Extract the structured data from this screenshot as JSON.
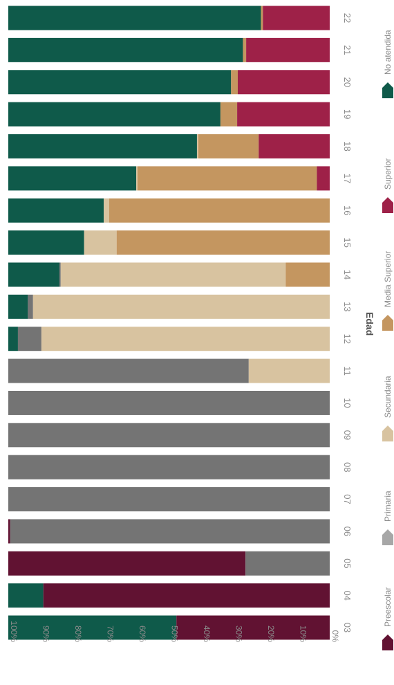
{
  "chart_data": {
    "type": "bar",
    "orientation": "horizontal-stacked-100",
    "title": "",
    "xlabel": "",
    "ylabel": "Edad",
    "xlim": [
      0,
      100
    ],
    "x_ticks": [
      "100%",
      "90%",
      "80%",
      "70%",
      "60%",
      "50%",
      "40%",
      "30%",
      "20%",
      "10%",
      "0%"
    ],
    "legend_position": "right",
    "categories": [
      "22",
      "21",
      "20",
      "19",
      "18",
      "17",
      "16",
      "15",
      "14",
      "13",
      "12",
      "11",
      "10",
      "09",
      "08",
      "07",
      "06",
      "05",
      "04",
      "03"
    ],
    "series": [
      {
        "name": "No atendida",
        "color": "#0f5a4a",
        "values": [
          78.6,
          73.0,
          69.3,
          66.0,
          58.7,
          39.8,
          29.7,
          23.6,
          15.9,
          6.1,
          3.0,
          0,
          0,
          0,
          0,
          0,
          0,
          0,
          10.9,
          52.3
        ]
      },
      {
        "name": "Preescolar",
        "color": "#611232",
        "values": [
          0,
          0,
          0,
          0,
          0,
          0,
          0,
          0,
          0,
          0,
          0,
          0,
          0,
          0,
          0,
          0,
          0.6,
          73.8,
          89.1,
          47.7
        ]
      },
      {
        "name": "Primaria",
        "color": "#747474",
        "values": [
          0,
          0,
          0,
          0,
          0,
          0,
          0,
          0,
          0.4,
          1.6,
          7.3,
          74.8,
          100,
          100,
          100,
          100,
          99.4,
          26.2,
          0,
          0
        ]
      },
      {
        "name": "Secundaria",
        "color": "#d8c3a0",
        "values": [
          0,
          0,
          0,
          0,
          0.4,
          0.4,
          1.7,
          10.1,
          70.0,
          92.3,
          89.7,
          25.2,
          0,
          0,
          0,
          0,
          0,
          0,
          0,
          0
        ]
      },
      {
        "name": "Media Superior",
        "color": "#c49660",
        "values": [
          0.6,
          1.0,
          2.1,
          5.2,
          18.8,
          55.8,
          68.6,
          66.3,
          13.7,
          0,
          0,
          0,
          0,
          0,
          0,
          0,
          0,
          0,
          0,
          0
        ]
      },
      {
        "name": "Superior",
        "color": "#9e2148",
        "values": [
          20.8,
          26.0,
          28.6,
          28.8,
          22.1,
          4.0,
          0,
          0,
          0,
          0,
          0,
          0,
          0,
          0,
          0,
          0,
          0,
          0,
          0,
          0
        ]
      }
    ]
  },
  "legend": [
    {
      "name": "Preescolar",
      "color": "#611232"
    },
    {
      "name": "Primaria",
      "color": "#a7a7a7"
    },
    {
      "name": "Secundaria",
      "color": "#d8c3a0"
    },
    {
      "name": "Media Superior",
      "color": "#c49660"
    },
    {
      "name": "Superior",
      "color": "#9e2148"
    },
    {
      "name": "No atendida",
      "color": "#0f5a4a"
    }
  ]
}
